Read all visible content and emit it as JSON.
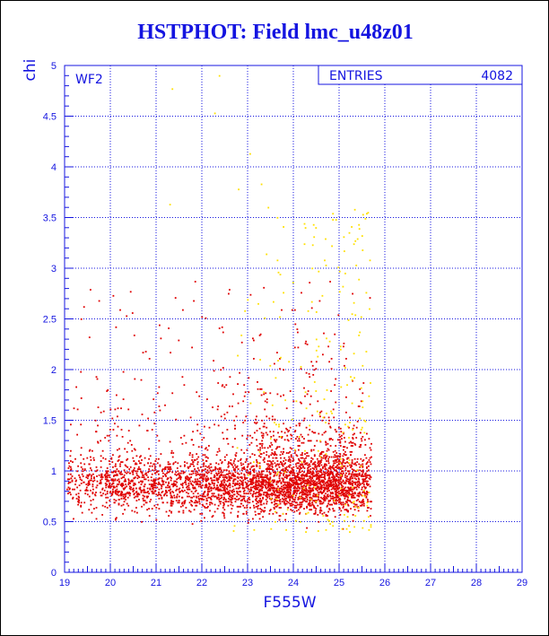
{
  "chart_data": {
    "type": "scatter",
    "title": "HSTPHOT: Field lmc_u48z01",
    "panel_label": "WF2",
    "xlabel": "F555W",
    "ylabel": "chi",
    "xlim": [
      19,
      29
    ],
    "ylim": [
      0,
      5
    ],
    "x_ticks": [
      "19",
      "20",
      "21",
      "22",
      "23",
      "24",
      "25",
      "26",
      "27",
      "28",
      "29"
    ],
    "y_ticks": [
      "0",
      "0.5",
      "1",
      "1.5",
      "2",
      "2.5",
      "3",
      "3.5",
      "4",
      "4.5",
      "5"
    ],
    "grid": true,
    "stats_box": {
      "label": "ENTRIES",
      "value": "4082"
    },
    "series": [
      {
        "color": "#e00000",
        "points": []
      },
      {
        "color": "#ffe000",
        "points": []
      }
    ],
    "colors": {
      "axes": "#1414e0",
      "grid": "#1414e0",
      "primary_points": "#e00000",
      "secondary_points": "#ffe000"
    }
  }
}
